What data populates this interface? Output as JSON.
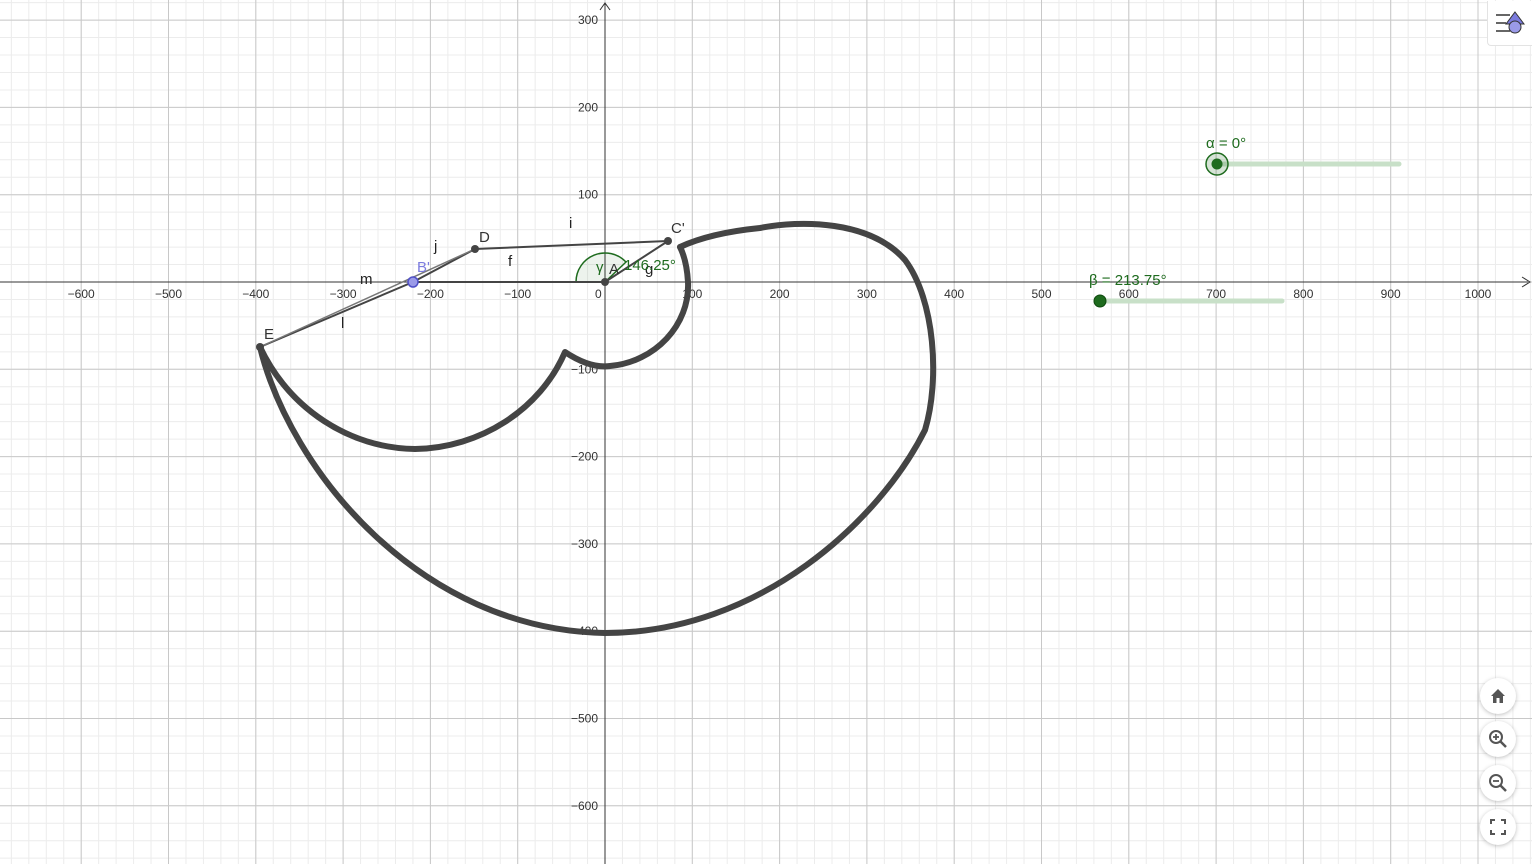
{
  "axes": {
    "x_ticks": [
      "−600",
      "−500",
      "−400",
      "−300",
      "−200",
      "−100",
      "0",
      "100",
      "200",
      "300",
      "400",
      "500",
      "600",
      "700",
      "800",
      "900",
      "1000"
    ],
    "x_values": [
      -600,
      -500,
      -400,
      -300,
      -200,
      -100,
      0,
      100,
      200,
      300,
      400,
      500,
      600,
      700,
      800,
      900,
      1000
    ],
    "y_ticks": [
      "300",
      "200",
      "100",
      "−100",
      "−200",
      "−300",
      "−400",
      "−500",
      "−600"
    ],
    "y_values": [
      300,
      200,
      100,
      -100,
      -200,
      -300,
      -400,
      -500,
      -600
    ]
  },
  "points": {
    "A": {
      "label": "A",
      "x": 0,
      "y": 0
    },
    "B": {
      "label": "B'",
      "x": -220,
      "y": 0
    },
    "C": {
      "label": "C'",
      "x": 72,
      "y": 47
    },
    "D": {
      "label": "D",
      "x": -148,
      "y": 38
    },
    "E": {
      "label": "E",
      "x": -398,
      "y": -75
    }
  },
  "segments": {
    "f": "f",
    "g": "g",
    "i": "i",
    "j": "j",
    "l": "l",
    "m": "m"
  },
  "angle": {
    "symbol": "γ",
    "value": "146.25°"
  },
  "sliders": {
    "alpha": {
      "label": "α = 0°",
      "value_deg": 0
    },
    "beta": {
      "label": "β = 213.75°",
      "value_deg": 213.75
    }
  },
  "nav": {
    "home": "home-icon",
    "zoom_in": "zoom-in-icon",
    "zoom_out": "zoom-out-icon",
    "fullscreen": "fullscreen-icon",
    "menu": "algebra-menu-icon"
  },
  "colors": {
    "curve": "#444444",
    "slider_green": "#1e6b1e",
    "slider_track": "#c8e0c8",
    "point_blue": "#7b7bde"
  }
}
